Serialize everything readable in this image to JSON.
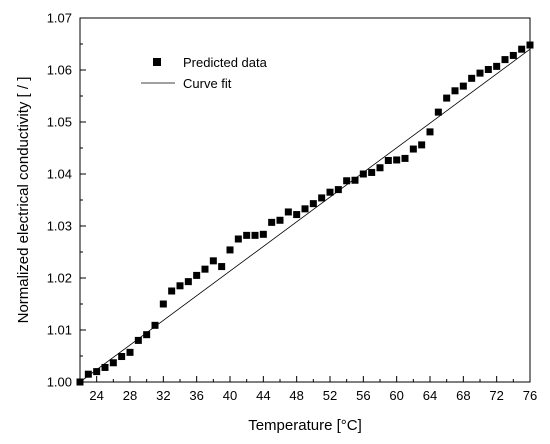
{
  "chart_data": {
    "type": "scatter",
    "xlabel": "Temperature [°C]",
    "ylabel": "Normalized electrical conductivity [ / ]",
    "xlim": [
      22,
      76
    ],
    "ylim": [
      1.0,
      1.07
    ],
    "x_ticks": [
      24,
      28,
      32,
      36,
      40,
      44,
      48,
      52,
      56,
      60,
      64,
      68,
      72,
      76
    ],
    "x_tick_labels": [
      "24",
      "28",
      "32",
      "36",
      "40",
      "44",
      "48",
      "52",
      "56",
      "60",
      "64",
      "68",
      "72",
      "76"
    ],
    "y_ticks": [
      1.0,
      1.01,
      1.02,
      1.03,
      1.04,
      1.05,
      1.06,
      1.07
    ],
    "y_tick_labels": [
      "1.00",
      "1.01",
      "1.02",
      "1.03",
      "1.04",
      "1.05",
      "1.06",
      "1.07"
    ],
    "legend": {
      "placement": "top-left"
    },
    "series": [
      {
        "name": "Predicted data",
        "kind": "scatter",
        "marker": "square",
        "color": "#000000",
        "points": [
          [
            22,
            1.0
          ],
          [
            23,
            1.0015
          ],
          [
            24,
            1.002
          ],
          [
            25,
            1.0028
          ],
          [
            26,
            1.0037
          ],
          [
            27,
            1.0049
          ],
          [
            28,
            1.0057
          ],
          [
            29,
            1.008
          ],
          [
            30,
            1.0091
          ],
          [
            31,
            1.0109
          ],
          [
            32,
            1.015
          ],
          [
            33,
            1.0175
          ],
          [
            34,
            1.0185
          ],
          [
            35,
            1.0193
          ],
          [
            36,
            1.0205
          ],
          [
            37,
            1.0217
          ],
          [
            38,
            1.0233
          ],
          [
            39,
            1.0222
          ],
          [
            40,
            1.0254
          ],
          [
            41,
            1.0275
          ],
          [
            42,
            1.0282
          ],
          [
            43,
            1.0282
          ],
          [
            44,
            1.0284
          ],
          [
            45,
            1.0307
          ],
          [
            46,
            1.0311
          ],
          [
            47,
            1.0327
          ],
          [
            48,
            1.0322
          ],
          [
            49,
            1.0333
          ],
          [
            50,
            1.0343
          ],
          [
            51,
            1.0354
          ],
          [
            52,
            1.0365
          ],
          [
            53,
            1.037
          ],
          [
            54,
            1.0387
          ],
          [
            55,
            1.0388
          ],
          [
            56,
            1.04
          ],
          [
            57,
            1.0403
          ],
          [
            58,
            1.0412
          ],
          [
            59,
            1.0426
          ],
          [
            60,
            1.0427
          ],
          [
            61,
            1.043
          ],
          [
            62,
            1.0448
          ],
          [
            63,
            1.0456
          ],
          [
            64,
            1.0481
          ],
          [
            65,
            1.0519
          ],
          [
            66,
            1.0546
          ],
          [
            67,
            1.056
          ],
          [
            68,
            1.0569
          ],
          [
            69,
            1.0584
          ],
          [
            70,
            1.0594
          ],
          [
            71,
            1.0601
          ],
          [
            72,
            1.0607
          ],
          [
            73,
            1.062
          ],
          [
            74,
            1.0628
          ],
          [
            75,
            1.064
          ],
          [
            76,
            1.0648
          ]
        ]
      },
      {
        "name": "Curve fit",
        "kind": "line",
        "color": "#000000",
        "points": [
          [
            22,
            1.0
          ],
          [
            76,
            1.064
          ]
        ]
      }
    ]
  }
}
